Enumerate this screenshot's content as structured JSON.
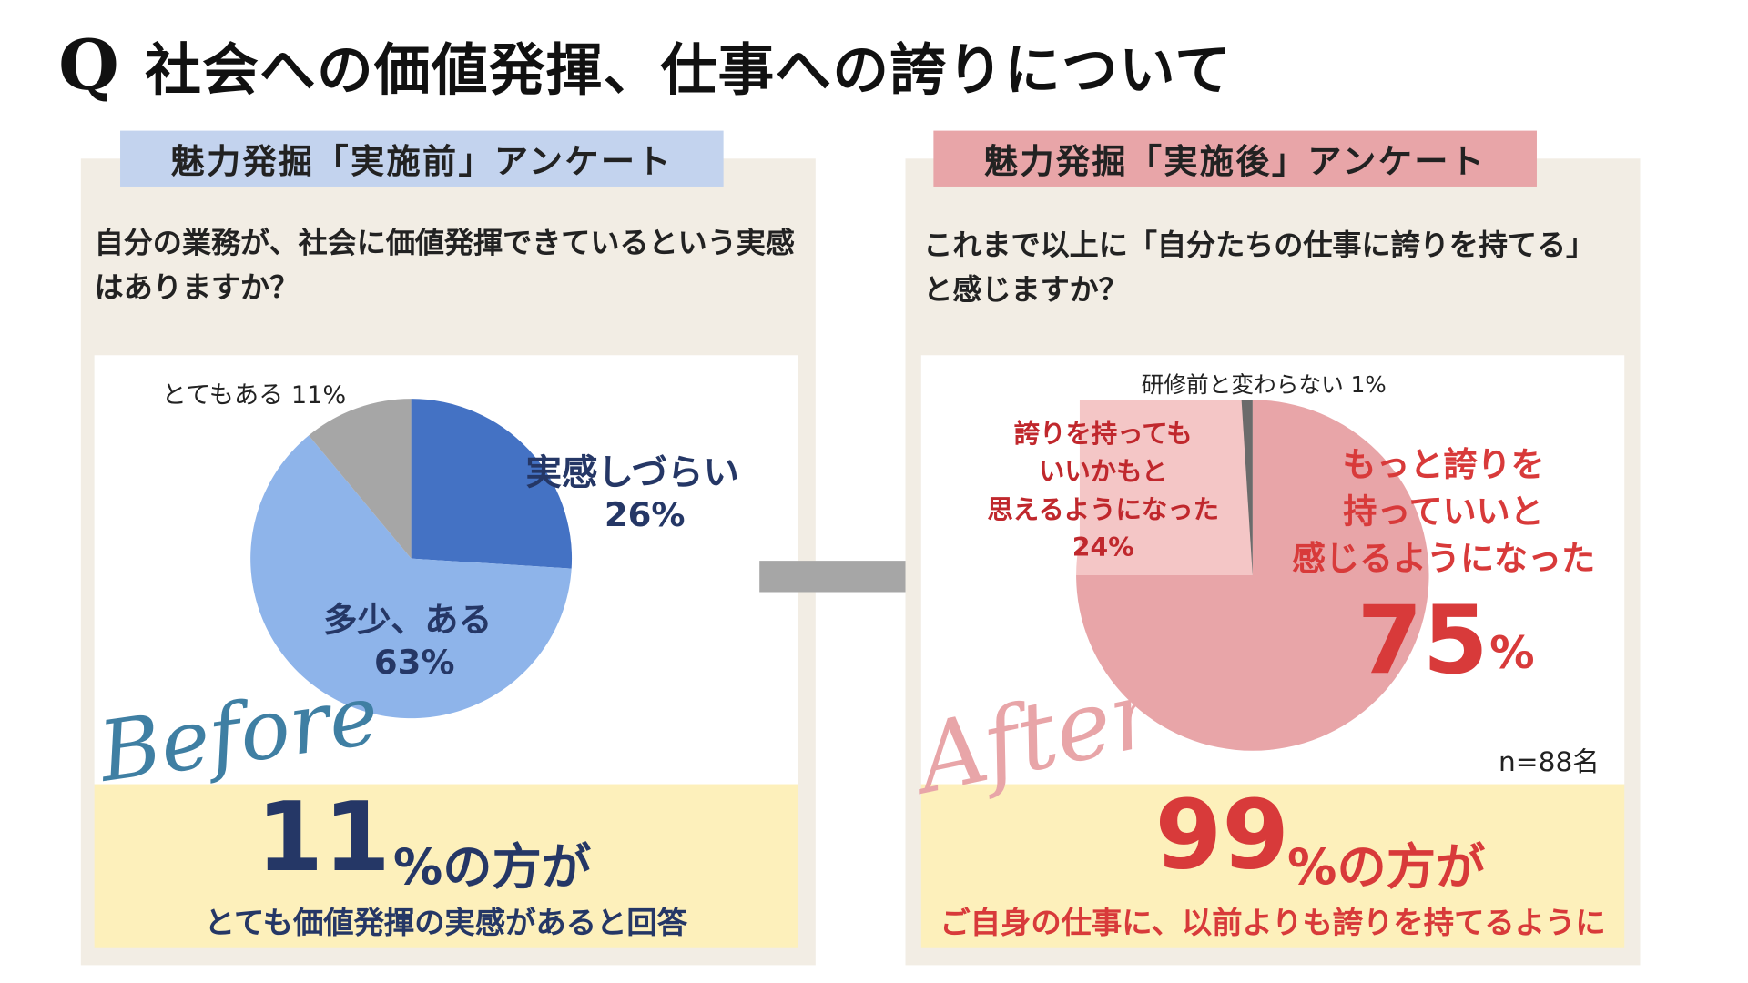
{
  "title": {
    "q": "Q",
    "text": "社会への価値発揮、仕事への誇りについて"
  },
  "before": {
    "tag": "魅力発掘「実施前」アンケート",
    "question": "自分の業務が、社会に価値発揮できているという実感はありますか？",
    "script_label": "Before",
    "big_number": "11",
    "big_suffix": "%の方が",
    "summary": "とても価値発揮の実感があると回答",
    "labels": {
      "very": "とてもある 11%",
      "hard": "実感しづらい",
      "hard_pct": "26%",
      "some": "多少、ある",
      "some_pct": "63%"
    }
  },
  "after": {
    "tag": "魅力発掘「実施後」アンケート",
    "question": "これまで以上に「自分たちの仕事に誇りを持てる」と感じますか？",
    "script_label": "After",
    "big_number": "99",
    "big_suffix": "%の方が",
    "summary": "ご自身の仕事に、以前よりも誇りを持てるように",
    "sample": "n=88名",
    "labels": {
      "same": "研修前と変わらない 1%",
      "maybe1": "誇りを持っても",
      "maybe2": "いいかもと",
      "maybe3": "思えるようになった",
      "maybe_pct": "24%",
      "more1": "もっと誇りを",
      "more2": "持っていいと",
      "more3": "感じるようになった",
      "more_num": "75",
      "more_pct": "%"
    }
  },
  "colors": {
    "before_tag": "#c3d3ee",
    "after_tag": "#e8a5a8",
    "accent_red": "#d83a3a",
    "navy": "#253766",
    "arrow": "#a6a6a6"
  },
  "chart_data": [
    {
      "type": "pie",
      "categories": [
        "実感しづらい",
        "多少、ある",
        "とてもある"
      ],
      "values": [
        26,
        63,
        11
      ],
      "colors": [
        "#4472c4",
        "#8eb4ea",
        "#a6a6a6"
      ]
    },
    {
      "type": "pie",
      "categories": [
        "もっと誇りを持っていいと感じるようになった",
        "誇りを持ってもいいかもと思えるようになった",
        "研修前と変わらない"
      ],
      "values": [
        75,
        24,
        1
      ],
      "colors": [
        "#e8a5a8",
        "#f4c6c6",
        "#6b6b6b"
      ]
    }
  ]
}
